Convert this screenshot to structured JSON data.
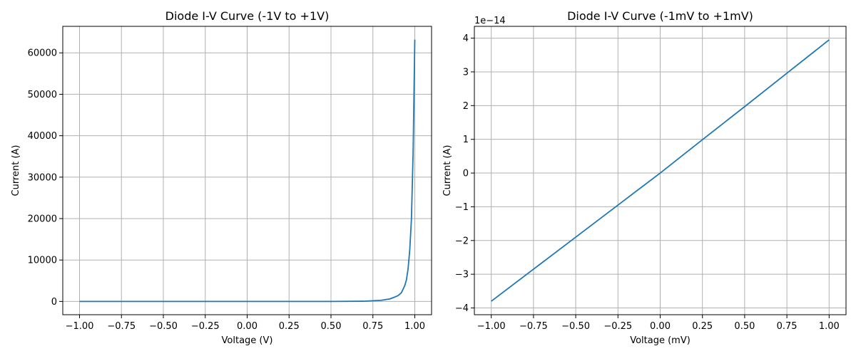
{
  "chart_data": [
    {
      "type": "line",
      "title": "Diode I-V Curve (-1V to +1V)",
      "xlabel": "Voltage (V)",
      "ylabel": "Current (A)",
      "xlim": [
        -1.1,
        1.1
      ],
      "ylim": [
        -3200,
        66400
      ],
      "xticks": [
        -1.0,
        -0.75,
        -0.5,
        -0.25,
        0.0,
        0.25,
        0.5,
        0.75,
        1.0
      ],
      "xtick_labels": [
        "−1.00",
        "−0.75",
        "−0.50",
        "−0.25",
        "0.00",
        "0.25",
        "0.50",
        "0.75",
        "1.00"
      ],
      "yticks": [
        0,
        10000,
        20000,
        30000,
        40000,
        50000,
        60000
      ],
      "ytick_labels": [
        "0",
        "10000",
        "20000",
        "30000",
        "40000",
        "50000",
        "60000"
      ],
      "offset_text": "",
      "grid": true,
      "series": [
        {
          "color": "#1f77b4",
          "x": [
            -1.0,
            -0.5,
            0.0,
            0.5,
            0.7,
            0.8,
            0.85,
            0.88,
            0.9,
            0.92,
            0.94,
            0.95,
            0.96,
            0.97,
            0.98,
            0.99,
            1.0
          ],
          "y": [
            0,
            0,
            0,
            0,
            60,
            280,
            600,
            1050,
            1400,
            2100,
            3800,
            5200,
            7900,
            12500,
            20000,
            36000,
            63200
          ]
        }
      ]
    },
    {
      "type": "line",
      "title": "Diode I-V Curve (-1mV to +1mV)",
      "xlabel": "Voltage (mV)",
      "ylabel": "Current (A)",
      "xlim": [
        -1.1,
        1.1
      ],
      "ylim": [
        -4.2,
        4.35
      ],
      "xticks": [
        -1.0,
        -0.75,
        -0.5,
        -0.25,
        0.0,
        0.25,
        0.5,
        0.75,
        1.0
      ],
      "xtick_labels": [
        "−1.00",
        "−0.75",
        "−0.50",
        "−0.25",
        "0.00",
        "0.25",
        "0.50",
        "0.75",
        "1.00"
      ],
      "yticks": [
        -4,
        -3,
        -2,
        -1,
        0,
        1,
        2,
        3,
        4
      ],
      "ytick_labels": [
        "−4",
        "−3",
        "−2",
        "−1",
        "0",
        "1",
        "2",
        "3",
        "4"
      ],
      "offset_text": "1e−14",
      "grid": true,
      "series": [
        {
          "color": "#1f77b4",
          "x": [
            -1.0,
            -0.75,
            -0.5,
            -0.25,
            0.0,
            0.25,
            0.5,
            0.75,
            1.0
          ],
          "y": [
            -3.8,
            -2.85,
            -1.9,
            -0.95,
            0.0,
            0.99,
            1.97,
            2.96,
            3.95
          ]
        }
      ]
    }
  ]
}
